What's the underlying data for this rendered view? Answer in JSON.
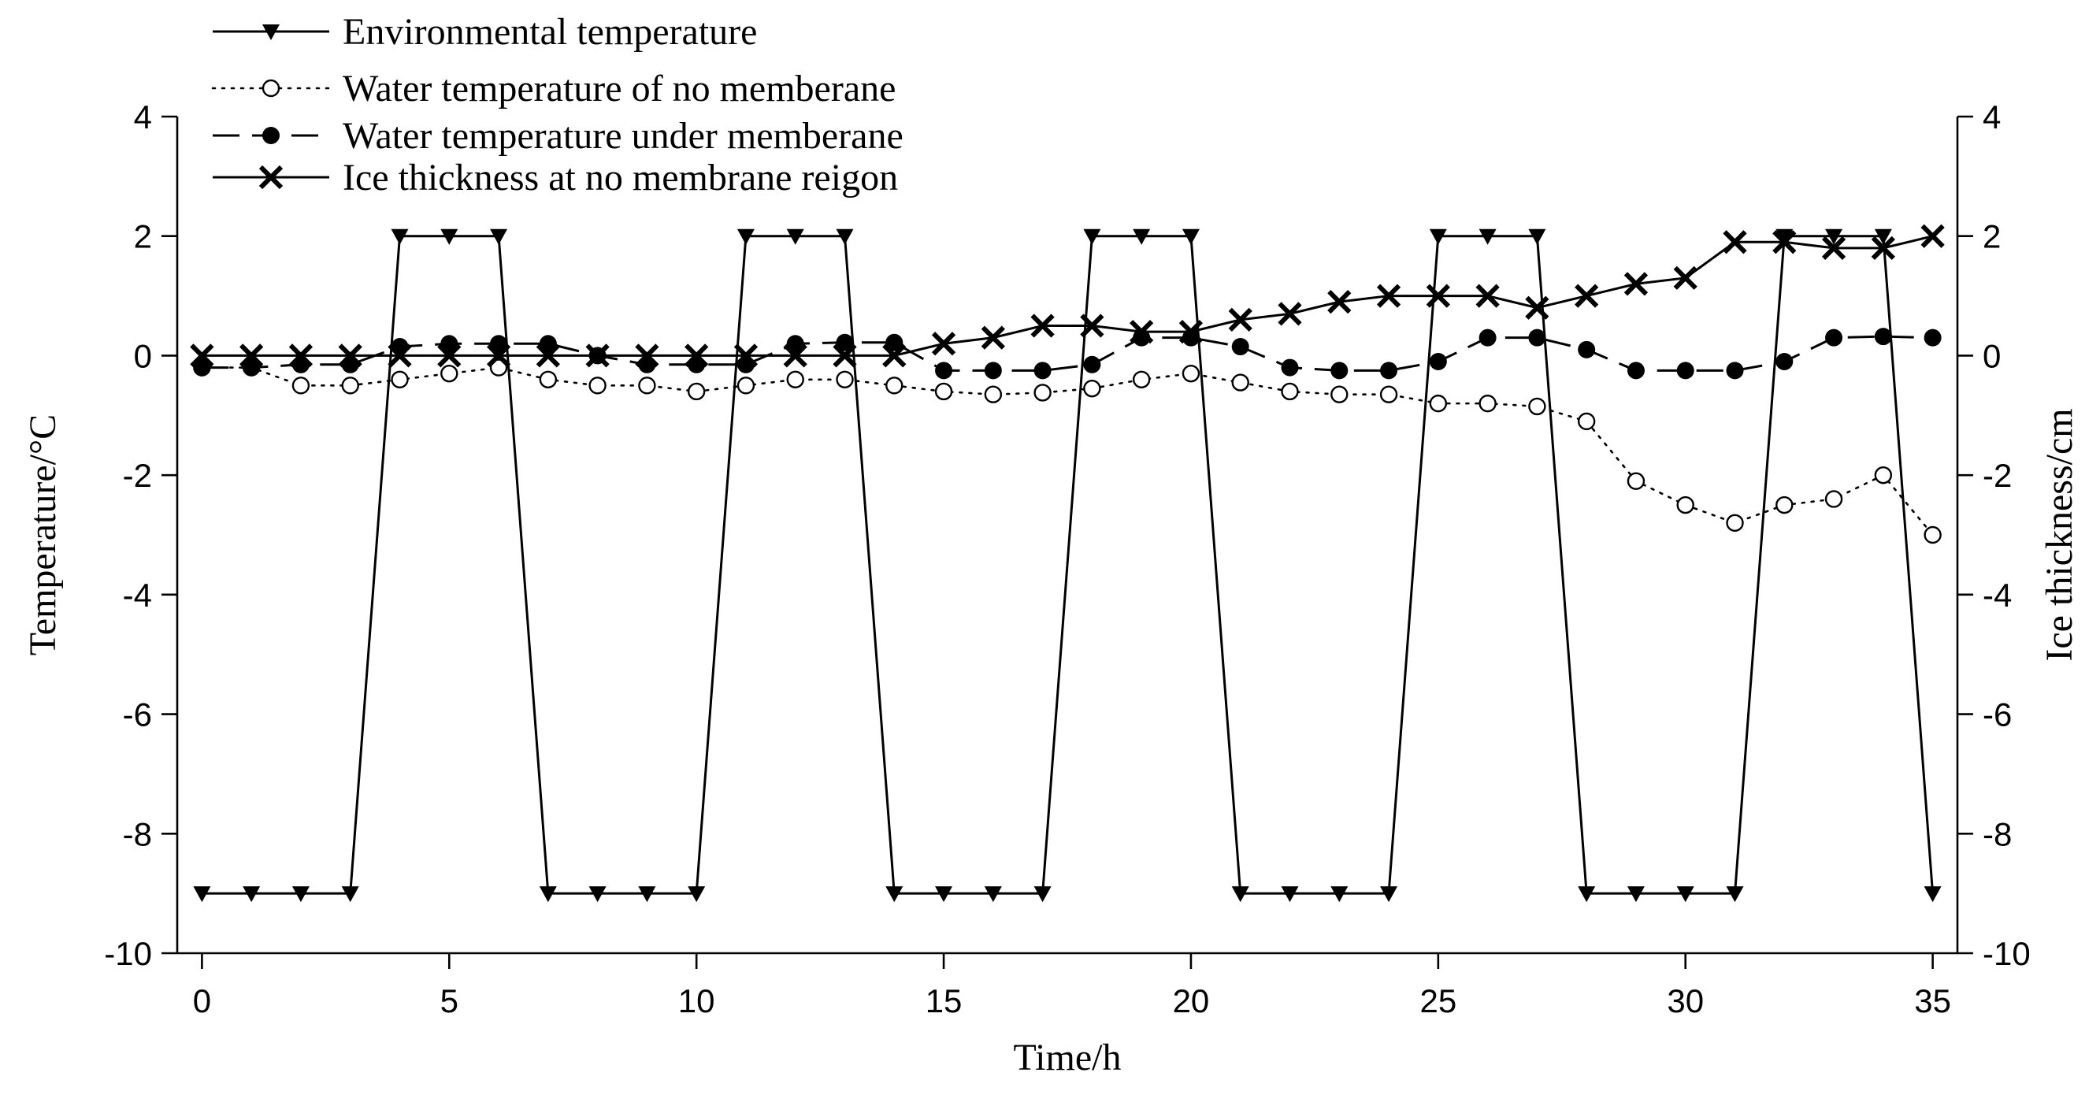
{
  "chart_data": {
    "type": "line",
    "title": "",
    "xlabel": "Time/h",
    "ylabel": "Temperature/°C",
    "y2label": "Ice thickness/cm",
    "xlim": [
      -0.5,
      35.5
    ],
    "ylim": [
      -10,
      4
    ],
    "y2lim": [
      -10,
      4
    ],
    "x_ticks": [
      0,
      5,
      10,
      15,
      20,
      25,
      30,
      35
    ],
    "y_ticks": [
      -10,
      -8,
      -6,
      -4,
      -2,
      0,
      2,
      4
    ],
    "y2_ticks": [
      -10,
      -8,
      -6,
      -4,
      -2,
      0,
      2,
      4
    ],
    "x": [
      0,
      1,
      2,
      3,
      4,
      5,
      6,
      7,
      8,
      9,
      10,
      11,
      12,
      13,
      14,
      15,
      16,
      17,
      18,
      19,
      20,
      21,
      22,
      23,
      24,
      25,
      26,
      27,
      28,
      29,
      30,
      31,
      32,
      33,
      34,
      35
    ],
    "series": [
      {
        "name": "Environmental temperature",
        "marker": "triangle-down",
        "style": "solid",
        "axis": "left",
        "values": [
          -9,
          -9,
          -9,
          -9,
          2,
          2,
          2,
          -9,
          -9,
          -9,
          -9,
          2,
          2,
          2,
          -9,
          -9,
          -9,
          -9,
          2,
          2,
          2,
          -9,
          -9,
          -9,
          -9,
          2,
          2,
          2,
          -9,
          -9,
          -9,
          -9,
          2,
          2,
          2,
          -9
        ]
      },
      {
        "name": "Water temperature of no memberane",
        "marker": "open-circle",
        "style": "dotted",
        "axis": "left",
        "values": [
          -0.2,
          -0.2,
          -0.5,
          -0.5,
          -0.4,
          -0.3,
          -0.2,
          -0.4,
          -0.5,
          -0.5,
          -0.6,
          -0.5,
          -0.4,
          -0.4,
          -0.5,
          -0.6,
          -0.65,
          -0.62,
          -0.55,
          -0.4,
          -0.3,
          -0.45,
          -0.6,
          -0.65,
          -0.65,
          -0.8,
          -0.8,
          -0.85,
          -1.1,
          -2.1,
          -2.5,
          -2.8,
          -2.5,
          -2.4,
          -2.0,
          -3.0
        ]
      },
      {
        "name": "Water temperature under memberane",
        "marker": "filled-circle",
        "style": "dashed",
        "axis": "left",
        "values": [
          -0.2,
          -0.2,
          -0.15,
          -0.15,
          0.15,
          0.2,
          0.2,
          0.2,
          0.0,
          -0.15,
          -0.15,
          -0.15,
          0.2,
          0.22,
          0.22,
          -0.25,
          -0.25,
          -0.25,
          -0.15,
          0.3,
          0.3,
          0.15,
          -0.2,
          -0.25,
          -0.25,
          -0.1,
          0.3,
          0.3,
          0.1,
          -0.25,
          -0.25,
          -0.25,
          -0.1,
          0.3,
          0.32,
          0.3
        ]
      },
      {
        "name": "Ice thickness at no membrane reigon",
        "marker": "x",
        "style": "solid",
        "axis": "right",
        "values": [
          0,
          0,
          0,
          0,
          0,
          0,
          0,
          0,
          0,
          0,
          0,
          0,
          0,
          0,
          0,
          0.2,
          0.3,
          0.5,
          0.5,
          0.4,
          0.4,
          0.6,
          0.7,
          0.9,
          1.0,
          1.0,
          1.0,
          0.8,
          1.0,
          1.2,
          1.3,
          1.9,
          1.9,
          1.8,
          1.8,
          2.0
        ]
      }
    ]
  }
}
